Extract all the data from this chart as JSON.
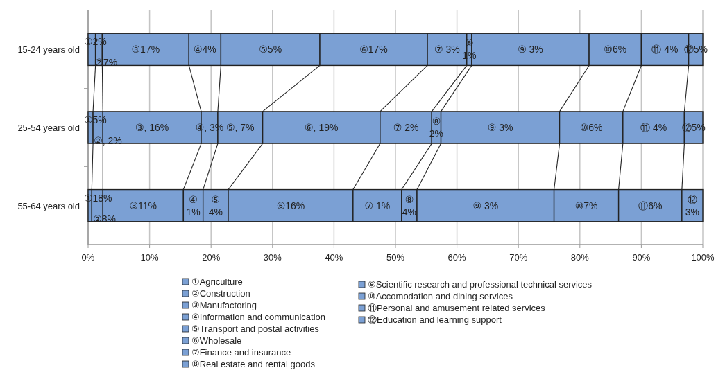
{
  "chart_data": {
    "type": "bar",
    "orientation": "horizontal",
    "stacked": true,
    "categories": [
      "15-24 years old",
      "25-54 years old",
      "55-64 years old"
    ],
    "series": [
      {
        "name": "①Agriculture",
        "color": "#7ba0d4",
        "values": [
          1.2,
          0.8,
          0.6
        ],
        "value_labels": [
          "①2%",
          "①5%",
          "①18%"
        ]
      },
      {
        "name": "②Construction",
        "color": "#7ba0d4",
        "values": [
          1.1,
          1.6,
          1.8
        ],
        "value_labels": [
          "②7%",
          "②, 2%",
          "②8%"
        ]
      },
      {
        "name": "③Manufactoring",
        "color": "#7ba0d4",
        "values": [
          14.1,
          16.0,
          13.1
        ],
        "value_labels": [
          "③17%",
          "③, 16%",
          "③11%"
        ]
      },
      {
        "name": "④Information and communication",
        "color": "#7ba0d4",
        "values": [
          5.2,
          2.7,
          3.2
        ],
        "value_labels": [
          "④4%",
          "④, 3%",
          "④ 1%"
        ]
      },
      {
        "name": "⑤Transport and postal activities",
        "color": "#7ba0d4",
        "values": [
          16.1,
          7.3,
          4.1
        ],
        "value_labels": [
          "⑤5%",
          "⑤, 7%",
          "⑤ 4%"
        ]
      },
      {
        "name": "⑥Wholesale",
        "color": "#7ba0d4",
        "values": [
          17.5,
          19.1,
          20.3
        ],
        "value_labels": [
          "⑥17%",
          "⑥, 19%",
          "⑥16%"
        ]
      },
      {
        "name": "⑦Finance and insurance",
        "color": "#7ba0d4",
        "values": [
          6.4,
          8.4,
          7.9
        ],
        "value_labels": [
          "⑦ 3%",
          "⑦ 2%",
          "⑦ 1%"
        ]
      },
      {
        "name": "⑧Real estate and rental goods",
        "color": "#7ba0d4",
        "values": [
          0.8,
          1.5,
          2.5
        ],
        "value_labels": [
          "⑧ 1%",
          "⑧ 2%",
          "⑧ 4%"
        ]
      },
      {
        "name": "⑨Scientific research and professional technical services",
        "color": "#7ba0d4",
        "values": [
          19.1,
          19.3,
          22.3
        ],
        "value_labels": [
          "⑨ 3%",
          "⑨ 3%",
          "⑨ 3%"
        ]
      },
      {
        "name": "⑩Accomodation and dining services",
        "color": "#7ba0d4",
        "values": [
          8.5,
          10.3,
          10.5
        ],
        "value_labels": [
          "⑩6%",
          "⑩6%",
          "⑩7%"
        ]
      },
      {
        "name": "⑪Personal and amusement related services",
        "color": "#7ba0d4",
        "values": [
          7.7,
          10.0,
          10.3
        ],
        "value_labels": [
          "⑪ 4%",
          "⑪ 4%",
          "⑪6%"
        ]
      },
      {
        "name": "⑫Education and learning support",
        "color": "#7ba0d4",
        "values": [
          2.3,
          3.0,
          3.4
        ],
        "value_labels": [
          "⑫5%",
          "⑫5%",
          "⑫ 3%"
        ]
      }
    ],
    "xlim": [
      0,
      100
    ],
    "xticks": [
      {
        "value": 0,
        "label": "0%"
      },
      {
        "value": 10,
        "label": "10%"
      },
      {
        "value": 20,
        "label": "20%"
      },
      {
        "value": 30,
        "label": "30%"
      },
      {
        "value": 40,
        "label": "40%"
      },
      {
        "value": 50,
        "label": "50%"
      },
      {
        "value": 60,
        "label": "60%"
      },
      {
        "value": 70,
        "label": "70%"
      },
      {
        "value": 80,
        "label": "80%"
      },
      {
        "value": 90,
        "label": "90%"
      },
      {
        "value": 100,
        "label": "100%"
      }
    ],
    "grid": "x",
    "legend": "bottom"
  }
}
